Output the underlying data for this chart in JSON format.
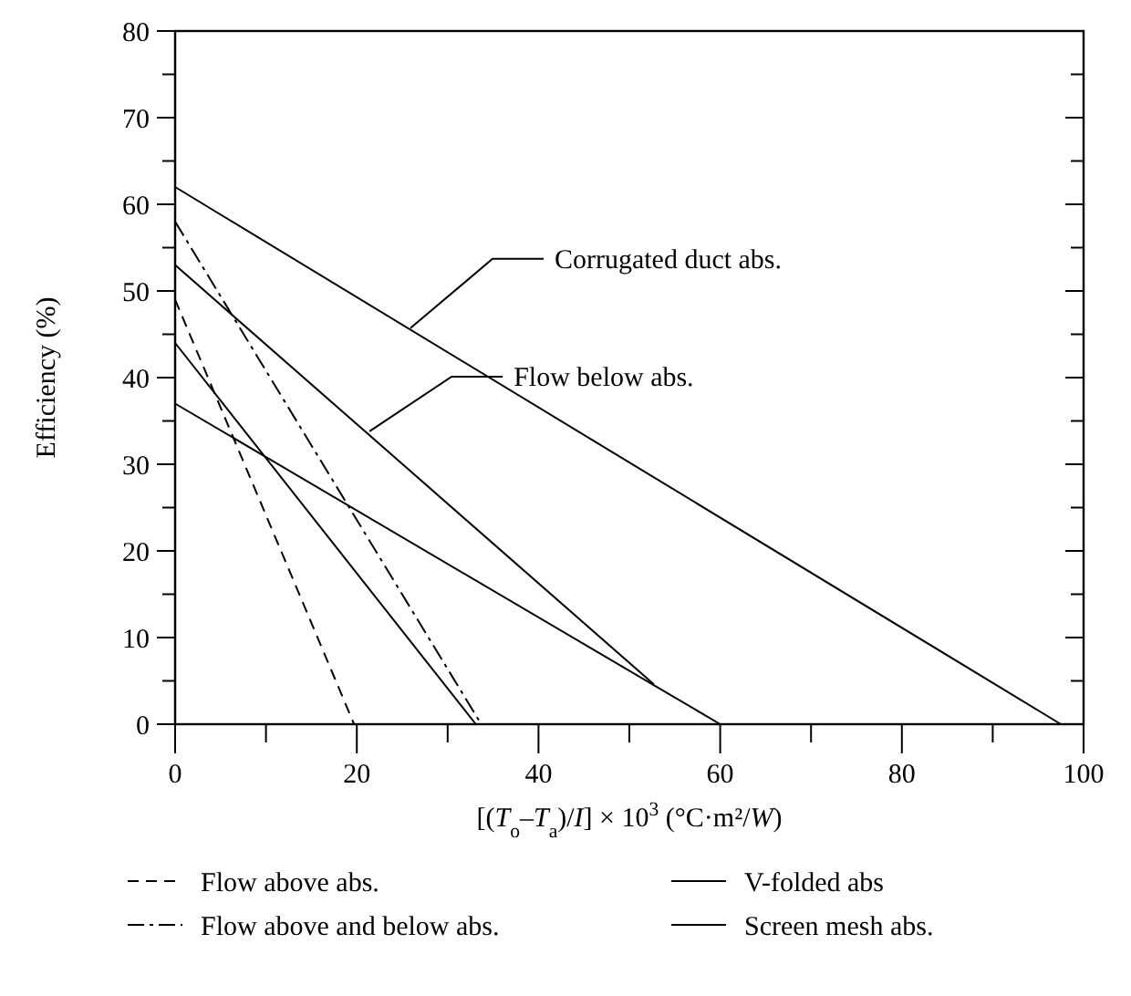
{
  "chart_data": {
    "type": "line",
    "xlabel": "[(T$_{o}$–T$_{a}$)/I] × 10$^{3}$ (°C·m²/W)",
    "ylabel": "Efficiency (%)",
    "xlim": [
      0,
      100
    ],
    "ylim": [
      0,
      80
    ],
    "xticks": [
      0,
      {
        "value": 10,
        "label": null
      },
      20,
      {
        "value": 30,
        "label": null
      },
      40,
      {
        "value": 50,
        "label": null
      },
      60,
      {
        "value": 70,
        "label": null
      },
      80,
      {
        "value": 90,
        "label": null
      },
      100
    ],
    "yticks": [
      0,
      {
        "value": 5,
        "label": null
      },
      10,
      {
        "value": 15,
        "label": null
      },
      20,
      {
        "value": 25,
        "label": null
      },
      30,
      {
        "value": 35,
        "label": null
      },
      40,
      {
        "value": 45,
        "label": null
      },
      50,
      {
        "value": 55,
        "label": null
      },
      60,
      {
        "value": 65,
        "label": null
      },
      70,
      {
        "value": 75,
        "label": null
      },
      80
    ],
    "grid": false,
    "legend": "bottom",
    "marker": "none",
    "series": [
      {
        "name": "Flow above abs.",
        "color": "#000000",
        "line_style": "dashed",
        "x": [
          0,
          19.7
        ],
        "values": [
          49,
          0
        ]
      },
      {
        "name": "Flow above and below abs.",
        "color": "#000000",
        "line_style": "dashdot",
        "x": [
          0,
          33.7
        ],
        "values": [
          58,
          0
        ]
      },
      {
        "name": "V-folded abs",
        "color": "#000000",
        "line_style": "solid",
        "x": [
          0,
          33.1
        ],
        "values": [
          44,
          0
        ]
      },
      {
        "name": "Screen mesh abs.",
        "color": "#000000",
        "line_style": "solid",
        "x": [
          0,
          60
        ],
        "values": [
          37,
          0
        ]
      },
      {
        "color": "#000000",
        "line_style": "solid",
        "x": [
          0,
          97.5
        ],
        "values": [
          62,
          0
        ]
      },
      {
        "color": "#000000",
        "line_style": "solid",
        "x": [
          0,
          52.7
        ],
        "values": [
          53,
          4.6
        ]
      }
    ],
    "annotations": [
      {
        "text": "Corrugated duct abs.",
        "x": 25.9,
        "y": 45.7
      },
      {
        "text": "Flow below abs.",
        "x": 21.4,
        "y": 33.8
      }
    ]
  }
}
